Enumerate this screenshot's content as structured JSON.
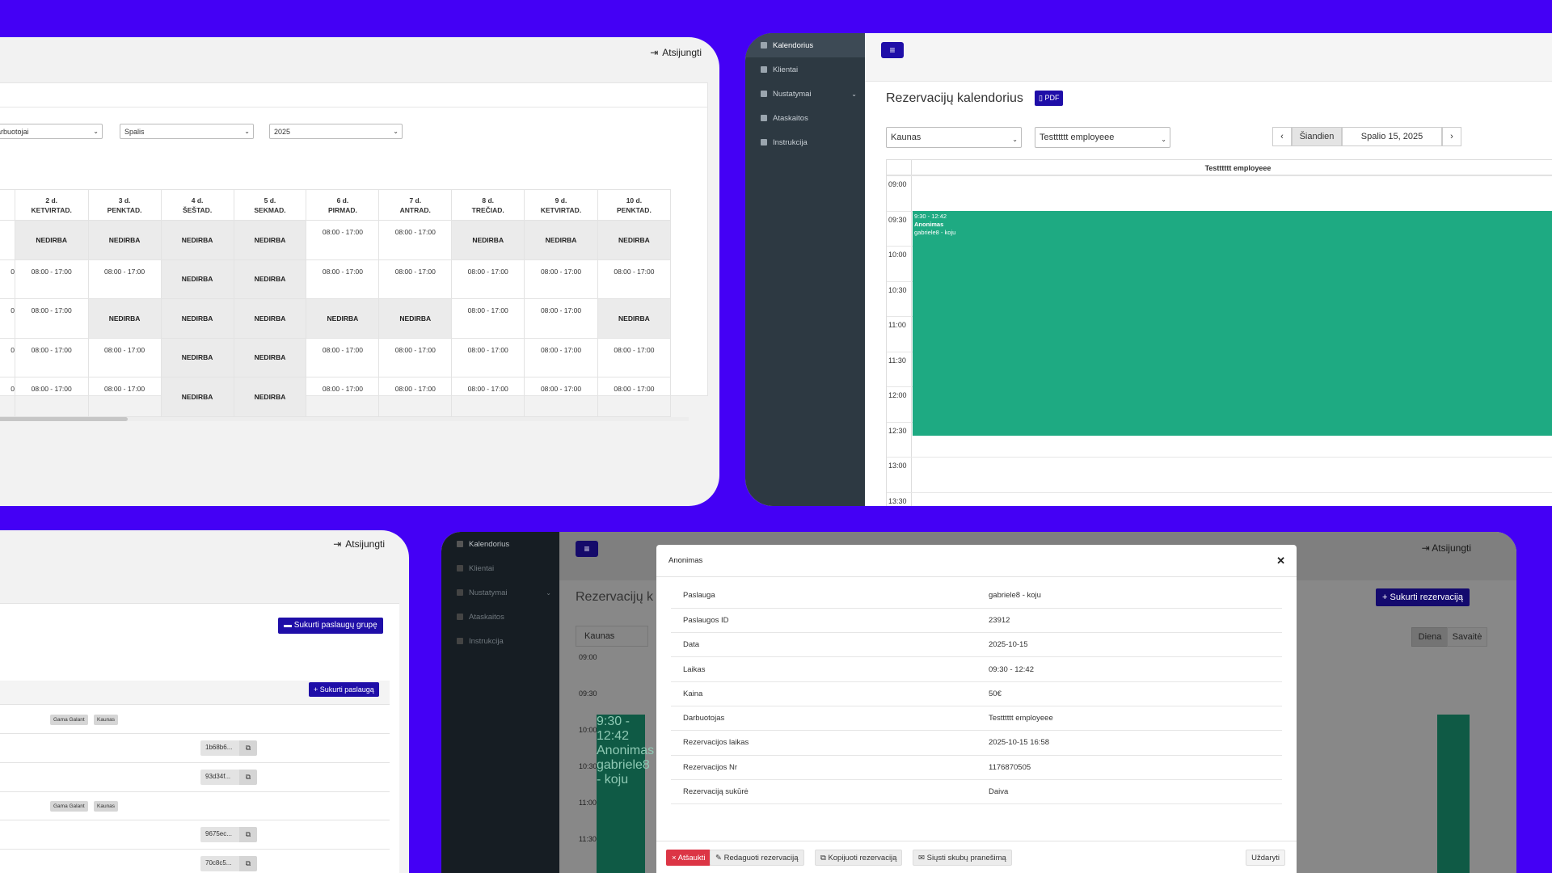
{
  "colors": {
    "background": "#4400f5",
    "accent": "#1f0ea8",
    "event": "#1eaa82",
    "sidebar": "#2d3942",
    "danger": "#dc3545"
  },
  "schedule": {
    "logout": "Atsijungti",
    "filters": {
      "employees": "arbuotojai",
      "month": "Spalis",
      "year": "2025"
    },
    "days": [
      {
        "num": "",
        "name": ""
      },
      {
        "num": "2 d.",
        "name": "KETVIRTAD."
      },
      {
        "num": "3 d.",
        "name": "PENKTAD."
      },
      {
        "num": "4 d.",
        "name": "ŠEŠTAD."
      },
      {
        "num": "5 d.",
        "name": "SEKMAD."
      },
      {
        "num": "6 d.",
        "name": "PIRMAD."
      },
      {
        "num": "7 d.",
        "name": "ANTRAD."
      },
      {
        "num": "8 d.",
        "name": "TREČIAD."
      },
      {
        "num": "9 d.",
        "name": "KETVIRTAD."
      },
      {
        "num": "10 d.",
        "name": "PENKTAD."
      }
    ],
    "rows": [
      [
        "",
        "NEDIRBA",
        "NEDIRBA",
        "NEDIRBA",
        "NEDIRBA",
        "08:00 - 17:00",
        "08:00 - 17:00",
        "NEDIRBA",
        "NEDIRBA",
        "NEDIRBA"
      ],
      [
        "0",
        "08:00 - 17:00",
        "08:00 - 17:00",
        "NEDIRBA",
        "NEDIRBA",
        "08:00 - 17:00",
        "08:00 - 17:00",
        "08:00 - 17:00",
        "08:00 - 17:00",
        "08:00 - 17:00"
      ],
      [
        "0",
        "08:00 - 17:00",
        "NEDIRBA",
        "NEDIRBA",
        "NEDIRBA",
        "NEDIRBA",
        "NEDIRBA",
        "08:00 - 17:00",
        "08:00 - 17:00",
        "NEDIRBA"
      ],
      [
        "0",
        "08:00 - 17:00",
        "08:00 - 17:00",
        "NEDIRBA",
        "NEDIRBA",
        "08:00 - 17:00",
        "08:00 - 17:00",
        "08:00 - 17:00",
        "08:00 - 17:00",
        "08:00 - 17:00"
      ],
      [
        "0",
        "08:00 - 17:00",
        "08:00 - 17:00",
        "NEDIRBA",
        "NEDIRBA",
        "08:00 - 17:00",
        "08:00 - 17:00",
        "08:00 - 17:00",
        "08:00 - 17:00",
        "08:00 - 17:00"
      ]
    ],
    "off_label": "NEDIRBA"
  },
  "calendar": {
    "sidebar": [
      "Kalendorius",
      "Klientai",
      "Nustatymai",
      "Ataskaitos",
      "Instrukcija"
    ],
    "title": "Rezervacijų kalendorius",
    "pdf": "PDF",
    "location": "Kaunas",
    "employee": "Testttttt employeee",
    "today": "Šiandien",
    "date": "Spalio 15, 2025",
    "column_header": "Testttttt employeee",
    "times": [
      "09:00",
      "09:30",
      "10:00",
      "10:30",
      "11:00",
      "11:30",
      "12:00",
      "12:30",
      "13:00",
      "13:30"
    ],
    "event": {
      "time": "9:30 - 12:42",
      "client": "Anonimas",
      "service": "gabriele8 - koju"
    }
  },
  "services": {
    "logout": "Atsijungti",
    "create_group": "Sukurti paslaugų grupę",
    "create_service": "Sukurti paslaugą",
    "tags": [
      "Gama Galant",
      "Kaunas"
    ],
    "ids": [
      "1b68b6...",
      "93d34f...",
      "9675ec...",
      "70c8c5..."
    ]
  },
  "modal_screen": {
    "sidebar": [
      "Kalendorius",
      "Klientai",
      "Nustatymai",
      "Ataskaitos",
      "Instrukcija"
    ],
    "logout": "Atsijungti",
    "title_partial": "Rezervacijų k",
    "create_reservation": "Sukurti rezervaciją",
    "location": "Kaunas",
    "view_day": "Diena",
    "view_week": "Savaitė",
    "times": [
      "09:00",
      "09:30",
      "10:00",
      "10:30",
      "11:00",
      "11:30"
    ],
    "event": {
      "time": "9:30 - 12:42",
      "client": "Anonimas",
      "service": "gabriele8 - koju"
    },
    "modal": {
      "title": "Anonimas",
      "rows": [
        {
          "label": "Paslauga",
          "value": "gabriele8 - koju"
        },
        {
          "label": "Paslaugos ID",
          "value": "23912"
        },
        {
          "label": "Data",
          "value": "2025-10-15"
        },
        {
          "label": "Laikas",
          "value": "09:30 - 12:42"
        },
        {
          "label": "Kaina",
          "value": "50€"
        },
        {
          "label": "Darbuotojas",
          "value": "Testttttt employeee"
        },
        {
          "label": "Rezervacijos laikas",
          "value": "2025-10-15 16:58"
        },
        {
          "label": "Rezervacijos Nr",
          "value": "1176870505"
        },
        {
          "label": "Rezervaciją sukūrė",
          "value": "Daiva"
        }
      ],
      "cancel": "Atšaukti",
      "edit": "Redaguoti rezervaciją",
      "copy": "Kopijuoti rezervaciją",
      "send": "Siųsti skubų pranešimą",
      "close": "Uždaryti"
    }
  }
}
